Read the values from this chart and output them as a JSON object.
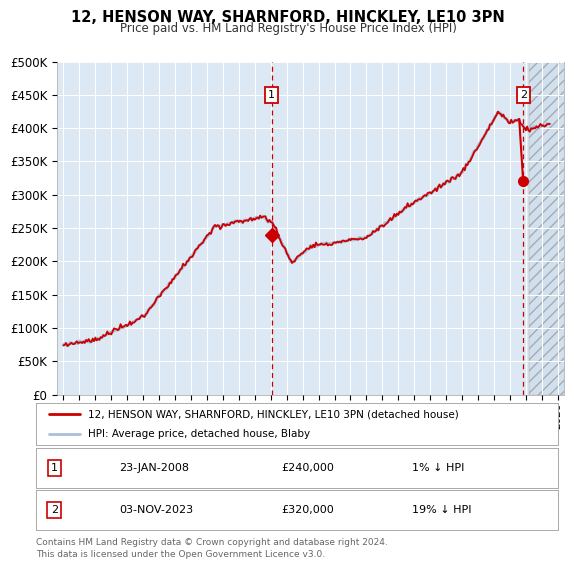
{
  "title": "12, HENSON WAY, SHARNFORD, HINCKLEY, LE10 3PN",
  "subtitle": "Price paid vs. HM Land Registry's House Price Index (HPI)",
  "legend_line1": "12, HENSON WAY, SHARNFORD, HINCKLEY, LE10 3PN (detached house)",
  "legend_line2": "HPI: Average price, detached house, Blaby",
  "annotation1_date": "23-JAN-2008",
  "annotation1_price": "£240,000",
  "annotation1_hpi": "1% ↓ HPI",
  "annotation2_date": "03-NOV-2023",
  "annotation2_price": "£320,000",
  "annotation2_hpi": "19% ↓ HPI",
  "footer": "Contains HM Land Registry data © Crown copyright and database right 2024.\nThis data is licensed under the Open Government Licence v3.0.",
  "hpi_color": "#aabfd8",
  "price_color": "#cc0000",
  "plot_bg": "#dce9f5",
  "ylim": [
    0,
    500000
  ],
  "yticks": [
    0,
    50000,
    100000,
    150000,
    200000,
    250000,
    300000,
    350000,
    400000,
    450000,
    500000
  ],
  "sale1_year": 2008.06,
  "sale1_price": 240000,
  "sale2_year": 2023.84,
  "sale2_price": 320000,
  "hatch_start": 2024.17,
  "xmin": 1994.6,
  "xmax": 2026.4
}
